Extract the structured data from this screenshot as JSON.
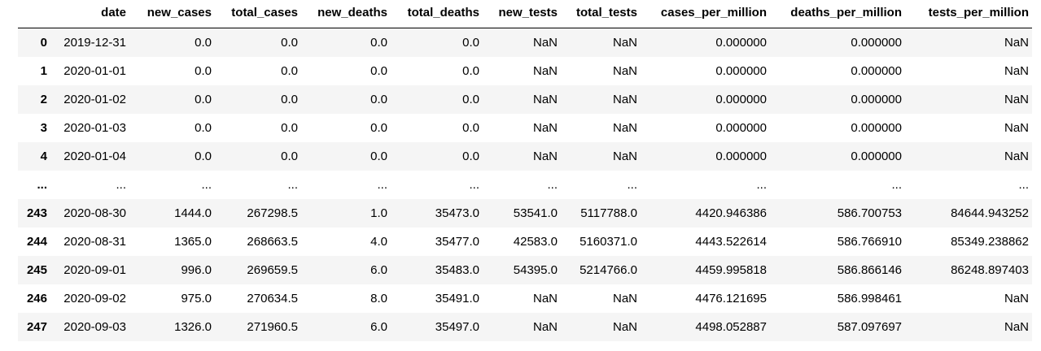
{
  "table": {
    "index_header": "",
    "columns": [
      "date",
      "new_cases",
      "total_cases",
      "new_deaths",
      "total_deaths",
      "new_tests",
      "total_tests",
      "cases_per_million",
      "deaths_per_million",
      "tests_per_million"
    ],
    "rows": [
      {
        "index": "0",
        "cells": [
          "2019-12-31",
          "0.0",
          "0.0",
          "0.0",
          "0.0",
          "NaN",
          "NaN",
          "0.000000",
          "0.000000",
          "NaN"
        ]
      },
      {
        "index": "1",
        "cells": [
          "2020-01-01",
          "0.0",
          "0.0",
          "0.0",
          "0.0",
          "NaN",
          "NaN",
          "0.000000",
          "0.000000",
          "NaN"
        ]
      },
      {
        "index": "2",
        "cells": [
          "2020-01-02",
          "0.0",
          "0.0",
          "0.0",
          "0.0",
          "NaN",
          "NaN",
          "0.000000",
          "0.000000",
          "NaN"
        ]
      },
      {
        "index": "3",
        "cells": [
          "2020-01-03",
          "0.0",
          "0.0",
          "0.0",
          "0.0",
          "NaN",
          "NaN",
          "0.000000",
          "0.000000",
          "NaN"
        ]
      },
      {
        "index": "4",
        "cells": [
          "2020-01-04",
          "0.0",
          "0.0",
          "0.0",
          "0.0",
          "NaN",
          "NaN",
          "0.000000",
          "0.000000",
          "NaN"
        ]
      },
      {
        "index": "...",
        "cells": [
          "...",
          "...",
          "...",
          "...",
          "...",
          "...",
          "...",
          "...",
          "...",
          "..."
        ]
      },
      {
        "index": "243",
        "cells": [
          "2020-08-30",
          "1444.0",
          "267298.5",
          "1.0",
          "35473.0",
          "53541.0",
          "5117788.0",
          "4420.946386",
          "586.700753",
          "84644.943252"
        ]
      },
      {
        "index": "244",
        "cells": [
          "2020-08-31",
          "1365.0",
          "268663.5",
          "4.0",
          "35477.0",
          "42583.0",
          "5160371.0",
          "4443.522614",
          "586.766910",
          "85349.238862"
        ]
      },
      {
        "index": "245",
        "cells": [
          "2020-09-01",
          "996.0",
          "269659.5",
          "6.0",
          "35483.0",
          "54395.0",
          "5214766.0",
          "4459.995818",
          "586.866146",
          "86248.897403"
        ]
      },
      {
        "index": "246",
        "cells": [
          "2020-09-02",
          "975.0",
          "270634.5",
          "8.0",
          "35491.0",
          "NaN",
          "NaN",
          "4476.121695",
          "586.998461",
          "NaN"
        ]
      },
      {
        "index": "247",
        "cells": [
          "2020-09-03",
          "1326.0",
          "271960.5",
          "6.0",
          "35497.0",
          "NaN",
          "NaN",
          "4498.052887",
          "587.097697",
          "NaN"
        ]
      }
    ]
  }
}
